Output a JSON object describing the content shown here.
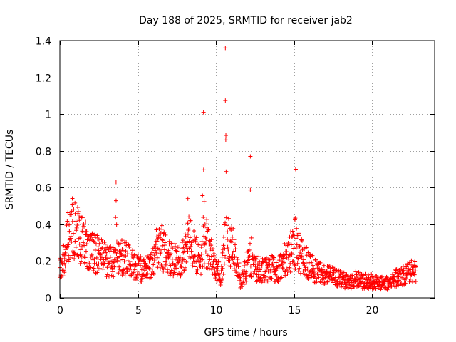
{
  "chart_data": {
    "type": "scatter",
    "title": "Day 188 of 2025, SRMTID for receiver jab2",
    "xlabel": "GPS time / hours",
    "ylabel": "SRMTID / TECUs",
    "xlim": [
      0,
      24
    ],
    "ylim": [
      0,
      1.4
    ],
    "x_ticks": [
      0,
      5,
      10,
      15,
      20
    ],
    "x_tick_labels": [
      "0",
      "5",
      "10",
      "15",
      "20"
    ],
    "y_ticks": [
      0,
      0.2,
      0.4,
      0.6,
      0.8,
      1.0,
      1.2,
      1.4
    ],
    "y_tick_labels": [
      "0",
      "0.2",
      "0.4",
      "0.6",
      "0.8",
      "1",
      "1.2",
      "1.4"
    ],
    "grid": true,
    "marker": "+",
    "series": [
      {
        "name": "SRMTID",
        "color": "#ff0000",
        "profile": [
          [
            0.0,
            0.16
          ],
          [
            0.3,
            0.22
          ],
          [
            0.5,
            0.33
          ],
          [
            0.7,
            0.38
          ],
          [
            1.0,
            0.36
          ],
          [
            1.3,
            0.33
          ],
          [
            1.6,
            0.29
          ],
          [
            2.0,
            0.25
          ],
          [
            2.5,
            0.23
          ],
          [
            3.0,
            0.2
          ],
          [
            3.5,
            0.19
          ],
          [
            4.0,
            0.22
          ],
          [
            4.5,
            0.2
          ],
          [
            5.0,
            0.17
          ],
          [
            5.5,
            0.14
          ],
          [
            6.0,
            0.22
          ],
          [
            6.3,
            0.3
          ],
          [
            6.7,
            0.25
          ],
          [
            7.0,
            0.22
          ],
          [
            7.5,
            0.2
          ],
          [
            8.0,
            0.23
          ],
          [
            8.3,
            0.35
          ],
          [
            8.6,
            0.25
          ],
          [
            9.0,
            0.2
          ],
          [
            9.4,
            0.3
          ],
          [
            9.8,
            0.2
          ],
          [
            10.3,
            0.12
          ],
          [
            10.6,
            0.3
          ],
          [
            11.0,
            0.3
          ],
          [
            11.3,
            0.22
          ],
          [
            11.6,
            0.07
          ],
          [
            12.0,
            0.18
          ],
          [
            12.5,
            0.16
          ],
          [
            13.0,
            0.15
          ],
          [
            13.5,
            0.16
          ],
          [
            14.0,
            0.16
          ],
          [
            14.5,
            0.22
          ],
          [
            15.0,
            0.28
          ],
          [
            15.5,
            0.22
          ],
          [
            16.0,
            0.17
          ],
          [
            16.5,
            0.14
          ],
          [
            17.0,
            0.13
          ],
          [
            17.5,
            0.12
          ],
          [
            18.0,
            0.1
          ],
          [
            18.5,
            0.09
          ],
          [
            19.0,
            0.1
          ],
          [
            19.5,
            0.09
          ],
          [
            20.0,
            0.09
          ],
          [
            20.5,
            0.08
          ],
          [
            21.0,
            0.08
          ],
          [
            21.5,
            0.11
          ],
          [
            22.0,
            0.12
          ],
          [
            22.5,
            0.14
          ],
          [
            22.8,
            0.14
          ]
        ],
        "spikes": [
          {
            "x": 3.6,
            "width": 0.12,
            "peak": 0.63
          },
          {
            "x": 8.2,
            "width": 0.12,
            "peak": 0.54
          },
          {
            "x": 9.2,
            "width": 0.18,
            "peak": 1.01
          },
          {
            "x": 10.6,
            "width": 0.1,
            "peak": 1.36
          },
          {
            "x": 12.2,
            "width": 0.12,
            "peak": 0.77
          },
          {
            "x": 15.1,
            "width": 0.12,
            "peak": 0.7
          }
        ],
        "x_range": [
          0.0,
          22.8
        ],
        "point_count": 1400
      }
    ]
  }
}
